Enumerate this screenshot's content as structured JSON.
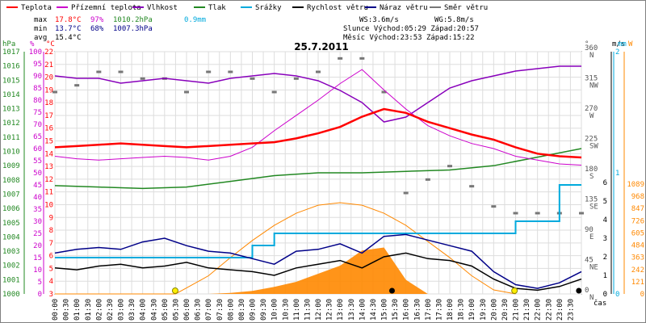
{
  "chart_data": {
    "type": "line",
    "title": "25.7.2011",
    "legend": [
      {
        "name": "Teplota",
        "color": "#ff0000"
      },
      {
        "name": "Přízemní teplota",
        "color": "#cc00cc"
      },
      {
        "name": "Vlhkost",
        "color": "#8800bb"
      },
      {
        "name": "Tlak",
        "color": "#228822"
      },
      {
        "name": "Srážky",
        "color": "#00aadd"
      },
      {
        "name": "Rychlost větru",
        "color": "#000000"
      },
      {
        "name": "Náraz větru",
        "color": "#000088"
      },
      {
        "name": "Směr větru",
        "color": "#777777"
      }
    ],
    "stats": {
      "max_label": "max",
      "max_temp": "17.8°C",
      "max_hum": "97%",
      "max_press": "1010.2hPa",
      "max_rain": "0.9mm",
      "min_label": "min",
      "min_temp": "13.7°C",
      "min_hum": "68%",
      "min_press": "1007.3hPa",
      "avg_label": "avg",
      "avg_temp": "15.4°C",
      "ws": "WS:3.6m/s",
      "wg": "WG:5.8m/s",
      "sun": "Slunce Východ:05:29  Západ:20:57",
      "moon": "Měsíc  Východ:23:53  Západ:15:22"
    },
    "x_ticks": [
      "00:00",
      "00:30",
      "01:00",
      "01:30",
      "02:00",
      "02:30",
      "03:00",
      "03:30",
      "04:00",
      "04:30",
      "05:00",
      "05:30",
      "06:00",
      "06:30",
      "07:00",
      "07:30",
      "08:00",
      "08:30",
      "09:00",
      "09:30",
      "10:00",
      "10:30",
      "11:00",
      "11:30",
      "12:00",
      "12:30",
      "13:00",
      "13:30",
      "14:00",
      "14:30",
      "15:00",
      "15:30",
      "16:00",
      "16:30",
      "17:00",
      "17:30",
      "18:00",
      "18:30",
      "19:00",
      "19:30",
      "20:00",
      "20:30",
      "21:00",
      "21:30",
      "22:00",
      "22:30",
      "23:00",
      "23:30"
    ],
    "x_label": "čas",
    "axes": {
      "hpa": {
        "unit": "hPa",
        "min": 1000,
        "max": 1017,
        "ticks": [
          "1000",
          "1001",
          "1002",
          "1003",
          "1004",
          "1005",
          "1006",
          "1007",
          "1008",
          "1009",
          "1010",
          "1011",
          "1012",
          "1013",
          "1014",
          "1015",
          "1016",
          "1017"
        ]
      },
      "pct": {
        "unit": "%",
        "ticks": [
          "100",
          "95",
          "90",
          "85",
          "80",
          "75",
          "70",
          "65",
          "60",
          "55",
          "50",
          "45",
          "40",
          "35",
          "30",
          "25",
          "20",
          "15",
          "10",
          "5",
          "0"
        ]
      },
      "degc": {
        "unit": "°C",
        "min": 3,
        "max": 22,
        "ticks": [
          "3",
          "4",
          "5",
          "6",
          "7",
          "8",
          "9",
          "10",
          "11",
          "12",
          "13",
          "14",
          "15",
          "16",
          "17",
          "18",
          "19",
          "20",
          "21",
          "22"
        ]
      },
      "dir": {
        "unit": "°",
        "ticks": [
          "0",
          "45",
          "90",
          "135",
          "180",
          "225",
          "270",
          "315",
          "360"
        ],
        "labels": [
          "N",
          "NE",
          "E",
          "SE",
          "S",
          "SW",
          "W",
          "NW",
          "N"
        ]
      },
      "ms": {
        "unit": "m/s",
        "ticks": [
          "0",
          "1",
          "2",
          "3",
          "4",
          "5",
          "6"
        ]
      },
      "mm": {
        "unit": "mm",
        "ticks": [
          "0",
          "1",
          "2"
        ]
      },
      "w": {
        "unit": "W",
        "ticks": [
          "0",
          "121",
          "242",
          "363",
          "484",
          "605",
          "726",
          "847",
          "968",
          "1089"
        ]
      }
    },
    "series": [
      {
        "name": "Teplota",
        "unit": "°C",
        "x": [
          0,
          1,
          2,
          3,
          4,
          5,
          6,
          7,
          8,
          9,
          10,
          11,
          12,
          13,
          14,
          15,
          16,
          17,
          18,
          19,
          20,
          21,
          22,
          23,
          24
        ],
        "y": [
          14.5,
          14.6,
          14.7,
          14.8,
          14.7,
          14.6,
          14.5,
          14.6,
          14.7,
          14.8,
          14.9,
          15.2,
          15.6,
          16.1,
          16.9,
          17.5,
          17.2,
          16.5,
          16.0,
          15.5,
          15.1,
          14.5,
          14.0,
          13.8,
          13.7
        ]
      },
      {
        "name": "Přízemní teplota",
        "unit": "°C",
        "x": [
          0,
          1,
          2,
          3,
          4,
          5,
          6,
          7,
          8,
          9,
          10,
          11,
          12,
          13,
          14,
          15,
          16,
          17,
          18,
          19,
          20,
          21,
          22,
          23,
          24
        ],
        "y": [
          13.8,
          13.6,
          13.5,
          13.6,
          13.7,
          13.8,
          13.7,
          13.5,
          13.8,
          14.5,
          15.8,
          17.0,
          18.2,
          19.5,
          20.6,
          19.0,
          17.5,
          16.2,
          15.4,
          14.8,
          14.4,
          13.8,
          13.5,
          13.2,
          13.1
        ]
      },
      {
        "name": "Vlhkost",
        "unit": "%",
        "x": [
          0,
          1,
          2,
          3,
          4,
          5,
          6,
          7,
          8,
          9,
          10,
          11,
          12,
          13,
          14,
          15,
          16,
          17,
          18,
          19,
          20,
          21,
          22,
          23,
          24
        ],
        "y": [
          90,
          89,
          89,
          87,
          88,
          89,
          88,
          87,
          89,
          90,
          91,
          90,
          88,
          84,
          79,
          71,
          73,
          79,
          85,
          88,
          90,
          92,
          93,
          94,
          94
        ]
      },
      {
        "name": "Tlak",
        "unit": "hPa",
        "x": [
          0,
          2,
          4,
          6,
          8,
          10,
          12,
          14,
          16,
          18,
          20,
          22,
          24
        ],
        "y": [
          1007.6,
          1007.5,
          1007.4,
          1007.5,
          1007.9,
          1008.3,
          1008.5,
          1008.5,
          1008.6,
          1008.7,
          1009.0,
          1009.6,
          1010.2
        ]
      },
      {
        "name": "Srážky",
        "unit": "mm",
        "x": [
          0,
          3,
          6,
          9,
          10,
          13,
          14,
          17,
          20,
          21,
          23,
          24
        ],
        "y": [
          0.3,
          0.3,
          0.3,
          0.4,
          0.5,
          0.5,
          0.5,
          0.5,
          0.5,
          0.6,
          0.9,
          0.9
        ]
      },
      {
        "name": "Rychlost větru",
        "unit": "m/s",
        "x": [
          0,
          1,
          2,
          3,
          4,
          5,
          6,
          7,
          8,
          9,
          10,
          11,
          12,
          13,
          14,
          15,
          16,
          17,
          18,
          19,
          20,
          21,
          22,
          23,
          24
        ],
        "y": [
          1.4,
          1.3,
          1.5,
          1.6,
          1.4,
          1.5,
          1.7,
          1.4,
          1.3,
          1.2,
          1.0,
          1.4,
          1.6,
          1.8,
          1.4,
          2.0,
          2.2,
          1.9,
          1.8,
          1.5,
          0.8,
          0.3,
          0.2,
          0.4,
          0.8
        ]
      },
      {
        "name": "Náraz větru",
        "unit": "m/s",
        "x": [
          0,
          1,
          2,
          3,
          4,
          5,
          6,
          7,
          8,
          9,
          10,
          11,
          12,
          13,
          14,
          15,
          16,
          17,
          18,
          19,
          20,
          21,
          22,
          23,
          24
        ],
        "y": [
          2.2,
          2.4,
          2.5,
          2.4,
          2.8,
          3.0,
          2.6,
          2.3,
          2.2,
          1.9,
          1.6,
          2.3,
          2.4,
          2.7,
          2.2,
          3.1,
          3.2,
          2.9,
          2.6,
          2.3,
          1.2,
          0.5,
          0.3,
          0.6,
          1.2
        ]
      },
      {
        "name": "Směr větru",
        "unit": "°",
        "x": [
          0,
          1,
          2,
          3,
          4,
          5,
          6,
          7,
          8,
          9,
          10,
          11,
          12,
          13,
          14,
          15,
          16,
          17,
          18,
          19,
          20,
          21,
          22,
          23,
          24
        ],
        "y": [
          300,
          310,
          330,
          330,
          320,
          320,
          300,
          330,
          330,
          320,
          300,
          320,
          330,
          350,
          350,
          300,
          150,
          170,
          190,
          160,
          130,
          120,
          120,
          120,
          120
        ]
      },
      {
        "name": "Solar",
        "unit": "W",
        "x": [
          0,
          5.5,
          6,
          7,
          8,
          9,
          10,
          11,
          12,
          13,
          14,
          15,
          16,
          17,
          18,
          19,
          20,
          21
        ],
        "y": [
          0,
          0,
          60,
          180,
          360,
          530,
          680,
          800,
          880,
          905,
          880,
          800,
          680,
          520,
          360,
          180,
          40,
          0
        ]
      },
      {
        "name": "Solar measured",
        "unit": "W",
        "x": [
          0,
          7,
          8,
          9,
          10,
          11,
          12,
          13,
          14,
          15,
          16,
          17,
          18,
          19,
          24
        ],
        "y": [
          0,
          0,
          10,
          30,
          70,
          120,
          200,
          280,
          430,
          460,
          140,
          0,
          0,
          0,
          0
        ]
      }
    ],
    "markers": {
      "sun": [
        "05:29",
        "20:57"
      ],
      "moon": [
        "15:22",
        "23:53"
      ]
    }
  }
}
